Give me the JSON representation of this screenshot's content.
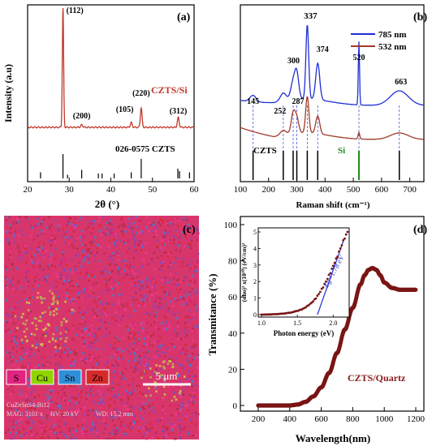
{
  "chart_data": [
    {
      "panel": "(a)",
      "type": "line",
      "xlabel": "2θ (°)",
      "ylabel": "Intensity (a.u)",
      "xlim": [
        20,
        60
      ],
      "xticks": [
        20,
        30,
        40,
        50,
        60
      ],
      "series": [
        {
          "name": "CZTS/Si",
          "color": "#c0392b",
          "peaks": [
            {
              "x": 28.5,
              "label": "(112)"
            },
            {
              "x": 33.0,
              "label": "(200)"
            },
            {
              "x": 44.9,
              "label": "(105)"
            },
            {
              "x": 47.3,
              "label": "(220)"
            },
            {
              "x": 56.2,
              "label": "(312)"
            }
          ]
        }
      ],
      "reference": {
        "label": "026-0575 CZTS",
        "lines": [
          {
            "x": 23.1,
            "h": 0.25
          },
          {
            "x": 28.5,
            "h": 1.0
          },
          {
            "x": 29.6,
            "h": 0.15
          },
          {
            "x": 33.0,
            "h": 0.35
          },
          {
            "x": 37.0,
            "h": 0.2
          },
          {
            "x": 37.9,
            "h": 0.2
          },
          {
            "x": 40.8,
            "h": 0.2
          },
          {
            "x": 44.9,
            "h": 0.25
          },
          {
            "x": 47.3,
            "h": 0.8
          },
          {
            "x": 56.1,
            "h": 0.4
          },
          {
            "x": 56.5,
            "h": 0.3
          },
          {
            "x": 58.9,
            "h": 0.25
          }
        ]
      }
    },
    {
      "panel": "(b)",
      "type": "line",
      "xlabel": "Raman shift (cm⁻¹)",
      "xlim": [
        100,
        750
      ],
      "xticks": [
        100,
        200,
        300,
        400,
        500,
        600,
        700
      ],
      "series": [
        {
          "name": "785 nm",
          "color": "#1f2fd6"
        },
        {
          "name": "532 nm",
          "color": "#a13a2a"
        }
      ],
      "peak_labels": [
        {
          "x": 145,
          "label": "145"
        },
        {
          "x": 252,
          "label": "252"
        },
        {
          "x": 287,
          "label": "287"
        },
        {
          "x": 300,
          "label": "300"
        },
        {
          "x": 337,
          "label": "337"
        },
        {
          "x": 374,
          "label": "374"
        },
        {
          "x": 520,
          "label": "520"
        },
        {
          "x": 663,
          "label": "663"
        }
      ],
      "reference_labels": {
        "czts": "CZTS",
        "si": "Si"
      },
      "reference_lines_czts": [
        145,
        252,
        287,
        300,
        337,
        374,
        663
      ],
      "reference_line_si": 520,
      "legend": "top-right"
    },
    {
      "panel": "(c)",
      "type": "image",
      "legend": [
        {
          "label": "S",
          "color": "#e0247f"
        },
        {
          "label": "Cu",
          "color": "#8fd400"
        },
        {
          "label": "Sn",
          "color": "#2f8fd9"
        },
        {
          "label": "Zn",
          "color": "#d62a2a"
        }
      ],
      "scale_bar": "5 μm",
      "footer": [
        "CuZnSnS4-Bi12",
        "MAG: 3101 x",
        "HV: 20 kV",
        "WD: 15.2 mm"
      ]
    },
    {
      "panel": "(d)",
      "type": "scatter",
      "xlabel": "Wavelength(nm)",
      "ylabel": "Transmitance (%)",
      "xlim": [
        200,
        1200
      ],
      "ylim": [
        0,
        100
      ],
      "xticks": [
        200,
        400,
        600,
        800,
        1000,
        1200
      ],
      "yticks": [
        0,
        20,
        40,
        60,
        80,
        100
      ],
      "series": [
        {
          "name": "CZTS/Quartz",
          "color": "#7a1515",
          "x": [
            200,
            300,
            400,
            450,
            500,
            550,
            600,
            650,
            700,
            750,
            800,
            850,
            875,
            900,
            925,
            950,
            975,
            1000,
            1050,
            1100,
            1150,
            1200
          ],
          "y": [
            0,
            0,
            0,
            0.5,
            2,
            5,
            10,
            18,
            29,
            42,
            54,
            67,
            72,
            75,
            76,
            75,
            72,
            68,
            65,
            64,
            64,
            64
          ]
        }
      ],
      "inset": {
        "xlabel": "Photon energy (eV)",
        "ylabel": "(αhυ)² x(10¹⁰) (eV/cm)²",
        "xlim": [
          1.0,
          2.2
        ],
        "ylim": [
          0,
          5
        ],
        "xticks": [
          1.0,
          1.5,
          2.0
        ],
        "yticks": [
          0,
          1,
          2,
          3,
          4,
          5
        ],
        "x": [
          1.0,
          1.1,
          1.2,
          1.3,
          1.4,
          1.5,
          1.55,
          1.6,
          1.65,
          1.7,
          1.75,
          1.8,
          1.85,
          1.9,
          1.95,
          2.0,
          2.05,
          2.1,
          2.15,
          2.2
        ],
        "y": [
          0.0,
          0.01,
          0.03,
          0.06,
          0.12,
          0.22,
          0.3,
          0.4,
          0.55,
          0.72,
          0.95,
          1.25,
          1.6,
          2.0,
          2.45,
          2.95,
          3.45,
          4.0,
          4.55,
          5.0
        ],
        "annotation": "Eg=1.78 eV",
        "fit_from": 1.78,
        "fit_to": 2.15
      }
    }
  ]
}
